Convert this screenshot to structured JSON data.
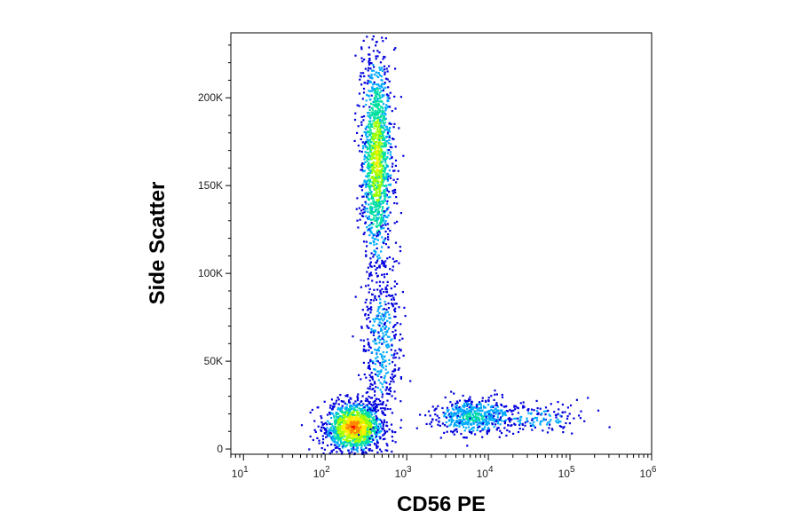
{
  "chart_data": {
    "type": "scatter",
    "subtype": "flow-cytometry density plot",
    "xlabel": "CD56 PE",
    "ylabel": "Side Scatter",
    "x_scale": "log",
    "xlim": [
      7,
      1000000
    ],
    "ylim": [
      -3000,
      237000
    ],
    "x_ticks": [
      {
        "value": 10,
        "base": "10",
        "exp": "1"
      },
      {
        "value": 100,
        "base": "10",
        "exp": "2"
      },
      {
        "value": 1000,
        "base": "10",
        "exp": "3"
      },
      {
        "value": 10000,
        "base": "10",
        "exp": "4"
      },
      {
        "value": 100000,
        "base": "10",
        "exp": "5"
      },
      {
        "value": 1000000,
        "base": "10",
        "exp": "6"
      }
    ],
    "y_ticks": [
      {
        "value": 0,
        "label": "0"
      },
      {
        "value": 50000,
        "label": "50K"
      },
      {
        "value": 100000,
        "label": "100K"
      },
      {
        "value": 150000,
        "label": "150K"
      },
      {
        "value": 200000,
        "label": "200K"
      }
    ],
    "grid": false,
    "legend": "none",
    "color_scale": [
      "#0000dd",
      "#00aaff",
      "#00e0a0",
      "#a0ff00",
      "#ffee00",
      "#ff8800",
      "#ff0000"
    ],
    "populations": [
      {
        "x": 220,
        "y": 13000,
        "x_spread_dec": 0.17,
        "y_spread": 7000,
        "density": "peak"
      },
      {
        "x": 420,
        "y": 165000,
        "x_spread_dec": 0.09,
        "y_spread": 30000,
        "density": "high"
      },
      {
        "x": 480,
        "y": 60000,
        "x_spread_dec": 0.12,
        "y_spread": 25000,
        "density": "low"
      },
      {
        "x": 6500,
        "y": 19000,
        "x_spread_dec": 0.25,
        "y_spread": 5000,
        "density": "medium"
      },
      {
        "x": 40000,
        "y": 18000,
        "x_spread_dec": 0.3,
        "y_spread": 4000,
        "density": "sparse"
      }
    ]
  }
}
